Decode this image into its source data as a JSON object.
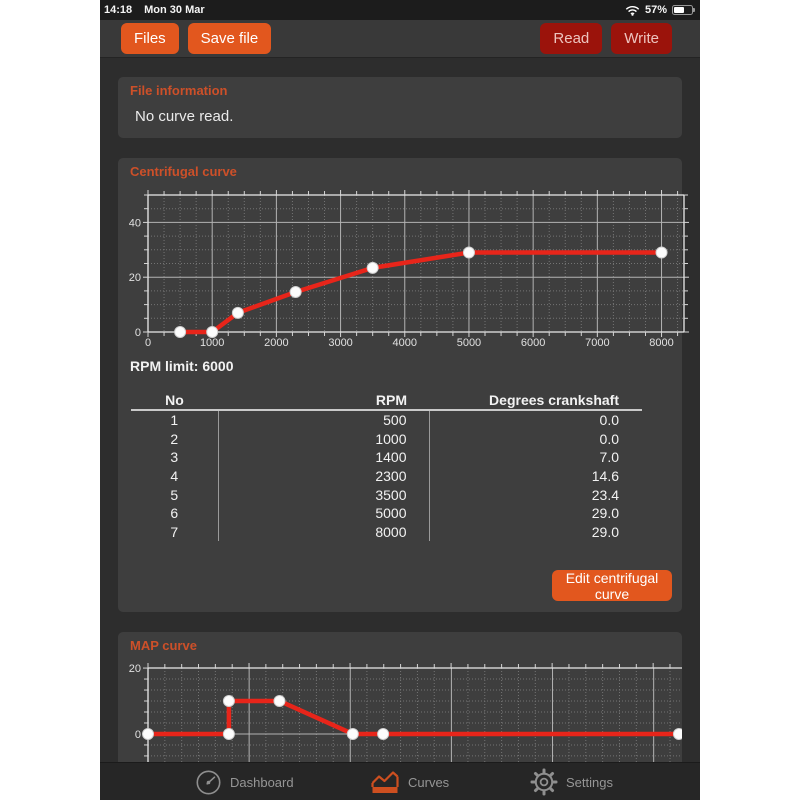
{
  "status_bar": {
    "time": "14:18",
    "date": "Mon 30 Mar",
    "battery_percent": "57%",
    "wifi_icon": "wifi-icon",
    "battery_icon": "battery-icon"
  },
  "toolbar": {
    "files_label": "Files",
    "save_file_label": "Save file",
    "read_label": "Read",
    "write_label": "Write"
  },
  "file_information": {
    "title": "File information",
    "message": "No curve read."
  },
  "centrifugal": {
    "title": "Centrifugal curve",
    "rpm_limit": "RPM limit: 6000",
    "table": {
      "headers": [
        "No",
        "RPM",
        "Degrees crankshaft"
      ],
      "rows": [
        [
          "1",
          "500",
          "0.0"
        ],
        [
          "2",
          "1000",
          "0.0"
        ],
        [
          "3",
          "1400",
          "7.0"
        ],
        [
          "4",
          "2300",
          "14.6"
        ],
        [
          "5",
          "3500",
          "23.4"
        ],
        [
          "6",
          "5000",
          "29.0"
        ],
        [
          "7",
          "8000",
          "29.0"
        ]
      ]
    },
    "edit_button_label": "Edit centrifugal curve"
  },
  "map": {
    "title": "MAP curve"
  },
  "tab_bar": {
    "items": [
      {
        "label": "Dashboard",
        "icon": "gauge-icon",
        "active": false
      },
      {
        "label": "Curves",
        "icon": "curves-icon",
        "active": true
      },
      {
        "label": "Settings",
        "icon": "gear-icon",
        "active": false
      }
    ]
  },
  "colors": {
    "accent_orange": "#e2571e",
    "title_orange": "#cd5029",
    "dark_red": "#9b130b",
    "line_red": "#e8251a",
    "card_bg": "#3e3e3e",
    "page_bg": "#2d2d2d",
    "tab_gray": "#969696"
  },
  "chart_data": [
    {
      "type": "line",
      "name": "centrifugal",
      "title": "Centrifugal curve",
      "x": [
        500,
        1000,
        1400,
        2300,
        3500,
        5000,
        8000
      ],
      "y": [
        0.0,
        0.0,
        7.0,
        14.6,
        23.4,
        29.0,
        29.0
      ],
      "xlim": [
        0,
        8350
      ],
      "ylim": [
        0,
        50
      ],
      "x_major_step": 1000,
      "x_minor_step": 250,
      "y_major_step": 20,
      "y_minor_step": 5,
      "x_tick_labels": [
        "0",
        "1000",
        "2000",
        "3000",
        "4000",
        "5000",
        "6000",
        "7000",
        "8000"
      ],
      "y_tick_labels": [
        "0",
        "20",
        "40"
      ],
      "grid": true,
      "clipped_bottom": false,
      "line_color": "#e8251a",
      "marker": "white-circle-handle"
    },
    {
      "type": "line",
      "name": "map",
      "title": "MAP curve",
      "x": [
        0,
        16,
        16,
        26,
        40.5,
        46.5,
        105
      ],
      "y": [
        0,
        0,
        10,
        10,
        0,
        0,
        0
      ],
      "xlim": [
        0,
        106
      ],
      "ylim": [
        -8.5,
        20
      ],
      "x_major_step": 20,
      "x_minor_step": 3.33,
      "y_major_step": 20,
      "y_minor_step": 3.33,
      "x_tick_labels": [],
      "y_tick_labels": [
        "0",
        "20"
      ],
      "x_labels_visible": false,
      "grid": true,
      "clipped_bottom": true,
      "line_color": "#e8251a",
      "marker": "white-circle-handle"
    }
  ]
}
